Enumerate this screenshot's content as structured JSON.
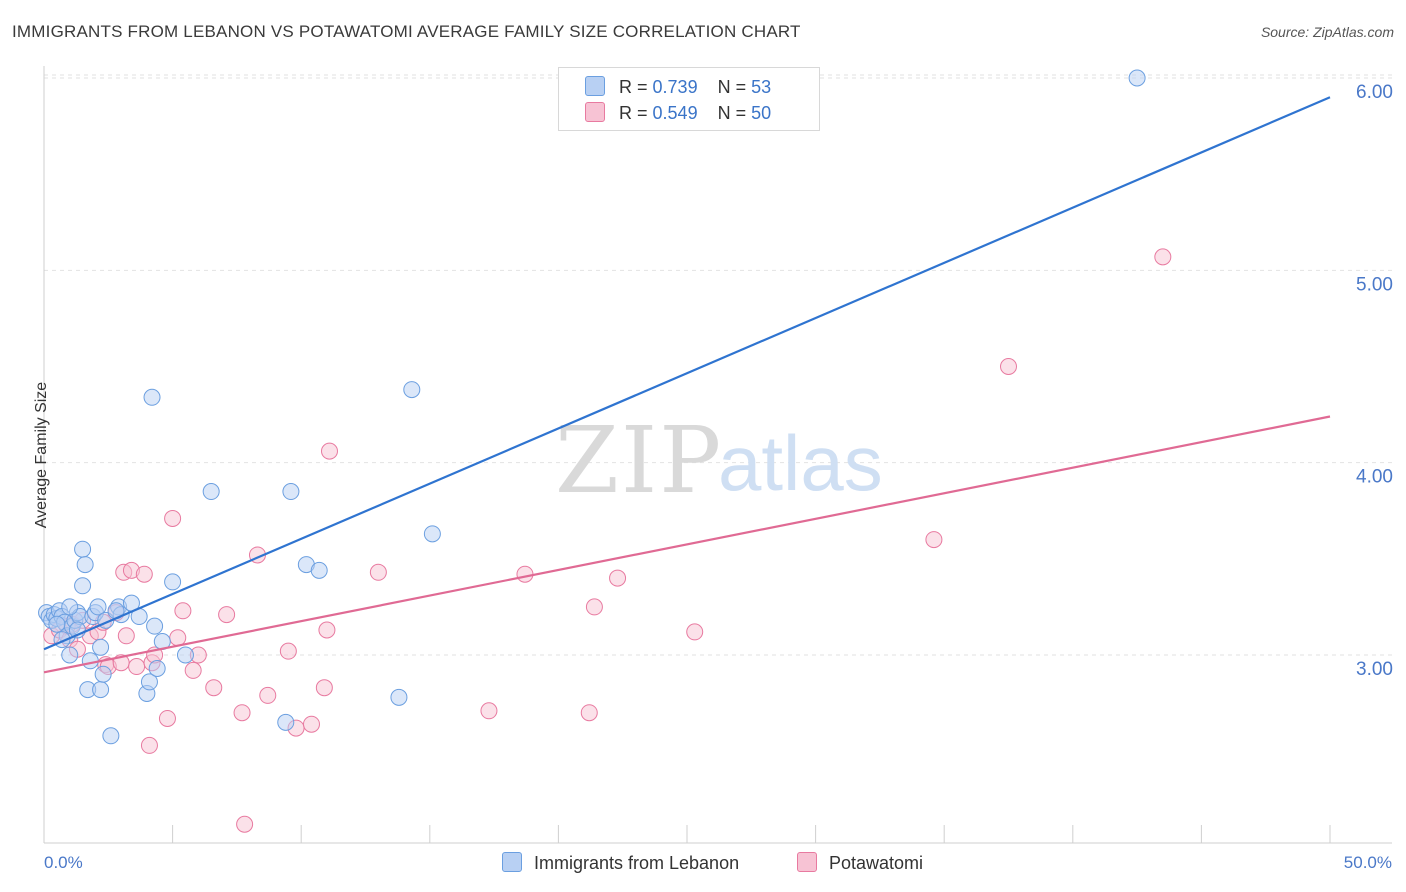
{
  "title": "IMMIGRANTS FROM LEBANON VS POTAWATOMI AVERAGE FAMILY SIZE CORRELATION CHART",
  "source": "Source: ZipAtlas.com",
  "watermark": {
    "zip": "ZIP",
    "atlas": "atlas"
  },
  "legend": {
    "series1": {
      "r_label": "R =",
      "r_value": "0.739",
      "n_label": "N =",
      "n_value": "53"
    },
    "series2": {
      "r_label": "R =",
      "r_value": "0.549",
      "n_label": "N =",
      "n_value": "50"
    }
  },
  "bottom_legend": {
    "series1": "Immigrants from Lebanon",
    "series2": "Potawatomi"
  },
  "colors": {
    "blue": "#6b9fe0",
    "blue_fill": "#b8d0f3",
    "pink": "#e87aa0",
    "pink_fill": "#f7c3d4",
    "blue_line": "#2f74d0",
    "pink_line": "#e06a94",
    "axis_text": "#4a78c8"
  },
  "chart_data": {
    "type": "scatter",
    "title": "IMMIGRANTS FROM LEBANON VS POTAWATOMI AVERAGE FAMILY SIZE CORRELATION CHART",
    "xlabel": "",
    "ylabel": "Average Family Size",
    "xlim": [
      0,
      50
    ],
    "ylim": [
      2.0,
      6.1
    ],
    "x_tick_labels": [
      "0.0%",
      "50.0%"
    ],
    "y_ticks": [
      3.0,
      4.0,
      5.0,
      6.0
    ],
    "y_tick_labels": [
      "3.00",
      "4.00",
      "5.00",
      "6.00"
    ],
    "grid": true,
    "legend_position": "top-center",
    "series": [
      {
        "name": "Immigrants from Lebanon",
        "trend": {
          "x": [
            0,
            50
          ],
          "y": [
            3.03,
            5.9
          ]
        },
        "points": [
          [
            0.1,
            3.22
          ],
          [
            0.2,
            3.2
          ],
          [
            0.3,
            3.18
          ],
          [
            0.4,
            3.21
          ],
          [
            0.5,
            3.19
          ],
          [
            0.6,
            3.23
          ],
          [
            0.7,
            3.2
          ],
          [
            0.8,
            3.17
          ],
          [
            0.9,
            3.1
          ],
          [
            1.0,
            3.0
          ],
          [
            1.1,
            3.15
          ],
          [
            1.2,
            3.18
          ],
          [
            1.3,
            3.22
          ],
          [
            1.4,
            3.2
          ],
          [
            1.5,
            3.55
          ],
          [
            1.5,
            3.36
          ],
          [
            1.6,
            3.47
          ],
          [
            1.7,
            2.82
          ],
          [
            1.8,
            2.97
          ],
          [
            1.9,
            3.2
          ],
          [
            2.0,
            3.22
          ],
          [
            2.1,
            3.25
          ],
          [
            2.2,
            3.04
          ],
          [
            2.2,
            2.82
          ],
          [
            2.3,
            2.9
          ],
          [
            2.4,
            3.18
          ],
          [
            2.6,
            2.58
          ],
          [
            2.9,
            3.25
          ],
          [
            3.0,
            3.21
          ],
          [
            3.4,
            3.27
          ],
          [
            4.0,
            2.8
          ],
          [
            4.1,
            2.86
          ],
          [
            4.2,
            4.34
          ],
          [
            4.3,
            3.15
          ],
          [
            4.4,
            2.93
          ],
          [
            4.6,
            3.07
          ],
          [
            5.0,
            3.38
          ],
          [
            5.5,
            3.0
          ],
          [
            6.5,
            3.85
          ],
          [
            9.4,
            2.65
          ],
          [
            9.6,
            3.85
          ],
          [
            10.2,
            3.47
          ],
          [
            10.7,
            3.44
          ],
          [
            13.8,
            2.78
          ],
          [
            14.3,
            4.38
          ],
          [
            15.1,
            3.63
          ],
          [
            42.5,
            6.0
          ],
          [
            0.7,
            3.08
          ],
          [
            1.3,
            3.13
          ],
          [
            0.5,
            3.16
          ],
          [
            2.8,
            3.23
          ],
          [
            3.7,
            3.2
          ],
          [
            1.0,
            3.25
          ]
        ]
      },
      {
        "name": "Potawatomi",
        "trend": {
          "x": [
            0,
            50
          ],
          "y": [
            2.91,
            4.24
          ]
        },
        "points": [
          [
            0.3,
            3.1
          ],
          [
            0.6,
            3.13
          ],
          [
            1.0,
            3.08
          ],
          [
            1.1,
            3.16
          ],
          [
            1.3,
            3.03
          ],
          [
            1.8,
            3.1
          ],
          [
            2.1,
            3.12
          ],
          [
            2.3,
            3.17
          ],
          [
            2.4,
            2.95
          ],
          [
            2.5,
            2.94
          ],
          [
            2.8,
            3.22
          ],
          [
            3.0,
            2.96
          ],
          [
            3.1,
            3.43
          ],
          [
            3.2,
            3.1
          ],
          [
            3.4,
            3.44
          ],
          [
            3.6,
            2.94
          ],
          [
            3.9,
            3.42
          ],
          [
            4.1,
            2.53
          ],
          [
            4.2,
            2.96
          ],
          [
            4.3,
            3.0
          ],
          [
            4.8,
            2.67
          ],
          [
            5.0,
            3.71
          ],
          [
            5.2,
            3.09
          ],
          [
            5.4,
            3.23
          ],
          [
            5.8,
            2.92
          ],
          [
            6.0,
            3.0
          ],
          [
            6.6,
            2.83
          ],
          [
            7.1,
            3.21
          ],
          [
            7.7,
            2.7
          ],
          [
            7.8,
            2.12
          ],
          [
            8.3,
            3.52
          ],
          [
            8.7,
            2.79
          ],
          [
            9.5,
            3.02
          ],
          [
            9.8,
            2.62
          ],
          [
            10.4,
            2.64
          ],
          [
            10.9,
            2.83
          ],
          [
            11.0,
            3.13
          ],
          [
            11.1,
            4.06
          ],
          [
            13.0,
            3.43
          ],
          [
            17.3,
            2.71
          ],
          [
            18.7,
            3.42
          ],
          [
            21.2,
            2.7
          ],
          [
            21.4,
            3.25
          ],
          [
            22.3,
            3.4
          ],
          [
            25.3,
            3.12
          ],
          [
            34.6,
            3.6
          ],
          [
            37.5,
            4.5
          ],
          [
            43.5,
            5.07
          ],
          [
            0.9,
            3.15
          ],
          [
            1.5,
            3.18
          ]
        ]
      }
    ]
  }
}
